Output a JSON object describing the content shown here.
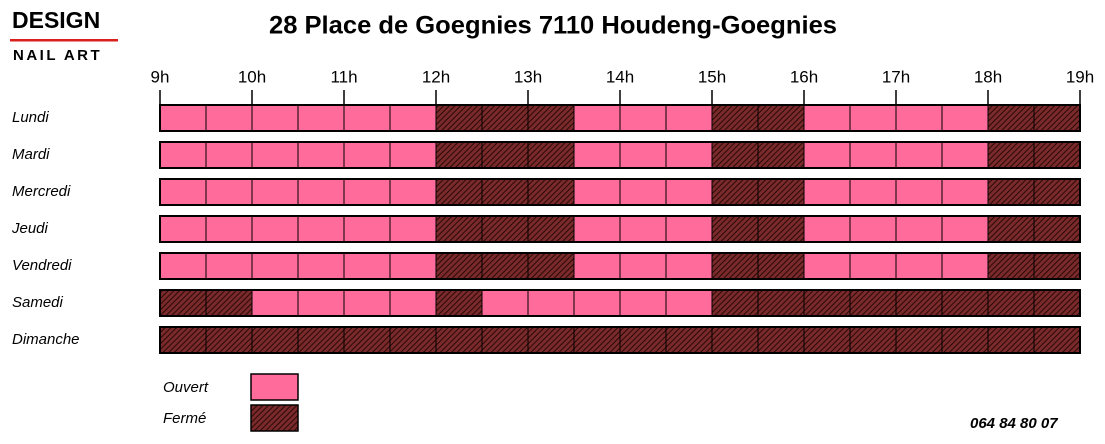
{
  "logo": {
    "line1": "DESIGN",
    "line2": "NAIL ART"
  },
  "title": "28 Place de Goegnies 7110 Houdeng-Goegnies",
  "hours": [
    "9h",
    "10h",
    "11h",
    "12h",
    "13h",
    "14h",
    "15h",
    "16h",
    "17h",
    "18h",
    "19h"
  ],
  "days": [
    {
      "name": "Lundi",
      "slots": [
        1,
        1,
        1,
        1,
        1,
        1,
        0,
        0,
        0,
        1,
        1,
        1,
        0,
        0,
        1,
        1,
        1,
        1,
        0,
        0
      ]
    },
    {
      "name": "Mardi",
      "slots": [
        1,
        1,
        1,
        1,
        1,
        1,
        0,
        0,
        0,
        1,
        1,
        1,
        0,
        0,
        1,
        1,
        1,
        1,
        0,
        0
      ]
    },
    {
      "name": "Mercredi",
      "slots": [
        1,
        1,
        1,
        1,
        1,
        1,
        0,
        0,
        0,
        1,
        1,
        1,
        0,
        0,
        1,
        1,
        1,
        1,
        0,
        0
      ]
    },
    {
      "name": "Jeudi",
      "slots": [
        1,
        1,
        1,
        1,
        1,
        1,
        0,
        0,
        0,
        1,
        1,
        1,
        0,
        0,
        1,
        1,
        1,
        1,
        0,
        0
      ]
    },
    {
      "name": "Vendredi",
      "slots": [
        1,
        1,
        1,
        1,
        1,
        1,
        0,
        0,
        0,
        1,
        1,
        1,
        0,
        0,
        1,
        1,
        1,
        1,
        0,
        0
      ]
    },
    {
      "name": "Samedi",
      "slots": [
        0,
        0,
        1,
        1,
        1,
        1,
        0,
        1,
        1,
        1,
        1,
        1,
        0,
        0,
        0,
        0,
        0,
        0,
        0,
        0
      ]
    },
    {
      "name": "Dimanche",
      "slots": [
        0,
        0,
        0,
        0,
        0,
        0,
        0,
        0,
        0,
        0,
        0,
        0,
        0,
        0,
        0,
        0,
        0,
        0,
        0,
        0
      ]
    }
  ],
  "legend": [
    {
      "label": "Ouvert",
      "state": 1
    },
    {
      "label": "Fermé",
      "state": 0
    }
  ],
  "phone": "064 84 80 07"
}
